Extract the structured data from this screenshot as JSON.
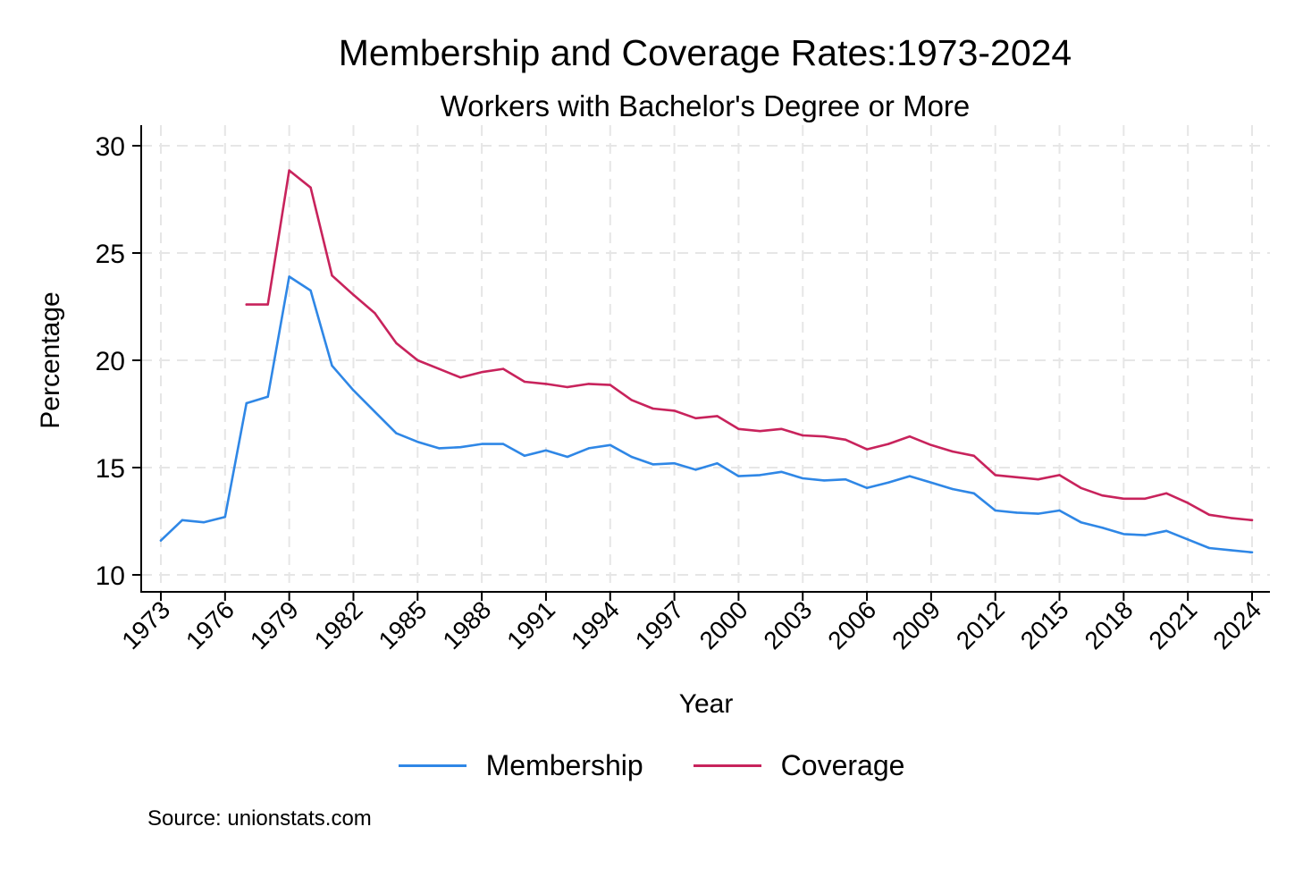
{
  "chart_data": {
    "type": "line",
    "title": "Membership and Coverage Rates:1973-2024",
    "subtitle": "Workers with Bachelor's Degree or More",
    "xlabel": "Year",
    "ylabel": "Percentage",
    "xlim": [
      1973,
      2024
    ],
    "ylim": [
      10,
      30
    ],
    "x_ticks": [
      1973,
      1976,
      1979,
      1982,
      1985,
      1988,
      1991,
      1994,
      1997,
      2000,
      2003,
      2006,
      2009,
      2012,
      2015,
      2018,
      2021,
      2024
    ],
    "y_ticks": [
      10,
      15,
      20,
      25,
      30
    ],
    "grid": true,
    "legend_position": "bottom",
    "source": "Source: unionstats.com",
    "series": [
      {
        "name": "Membership",
        "color": "#2f87e6",
        "x": [
          1973,
          1974,
          1975,
          1976,
          1977,
          1978,
          1979,
          1980,
          1981,
          1982,
          1983,
          1984,
          1985,
          1986,
          1987,
          1988,
          1989,
          1990,
          1991,
          1992,
          1993,
          1994,
          1995,
          1996,
          1997,
          1998,
          1999,
          2000,
          2001,
          2002,
          2003,
          2004,
          2005,
          2006,
          2007,
          2008,
          2009,
          2010,
          2011,
          2012,
          2013,
          2014,
          2015,
          2016,
          2017,
          2018,
          2019,
          2020,
          2021,
          2022,
          2023,
          2024
        ],
        "values": [
          11.6,
          12.55,
          12.45,
          12.7,
          18.0,
          18.3,
          23.9,
          23.25,
          19.75,
          18.6,
          17.6,
          16.6,
          16.2,
          15.9,
          15.95,
          16.1,
          16.1,
          15.55,
          15.8,
          15.5,
          15.9,
          16.05,
          15.5,
          15.15,
          15.2,
          14.9,
          15.2,
          14.6,
          14.65,
          14.8,
          14.5,
          14.4,
          14.45,
          14.05,
          14.3,
          14.6,
          14.3,
          14.0,
          13.8,
          13.0,
          12.9,
          12.85,
          13.0,
          12.45,
          12.2,
          11.9,
          11.85,
          12.05,
          11.65,
          11.25,
          11.15,
          11.05
        ]
      },
      {
        "name": "Coverage",
        "color": "#c8235c",
        "x": [
          1977,
          1978,
          1979,
          1980,
          1981,
          1982,
          1983,
          1984,
          1985,
          1986,
          1987,
          1988,
          1989,
          1990,
          1991,
          1992,
          1993,
          1994,
          1995,
          1996,
          1997,
          1998,
          1999,
          2000,
          2001,
          2002,
          2003,
          2004,
          2005,
          2006,
          2007,
          2008,
          2009,
          2010,
          2011,
          2012,
          2013,
          2014,
          2015,
          2016,
          2017,
          2018,
          2019,
          2020,
          2021,
          2022,
          2023,
          2024
        ],
        "values": [
          22.6,
          22.6,
          28.85,
          28.05,
          23.95,
          23.05,
          22.2,
          20.8,
          20.0,
          19.6,
          19.2,
          19.45,
          19.6,
          19.0,
          18.9,
          18.75,
          18.9,
          18.85,
          18.15,
          17.75,
          17.65,
          17.3,
          17.4,
          16.8,
          16.7,
          16.8,
          16.5,
          16.45,
          16.3,
          15.85,
          16.1,
          16.45,
          16.05,
          15.75,
          15.55,
          14.65,
          14.55,
          14.45,
          14.65,
          14.05,
          13.7,
          13.55,
          13.55,
          13.8,
          13.35,
          12.8,
          12.65,
          12.55
        ]
      }
    ]
  }
}
